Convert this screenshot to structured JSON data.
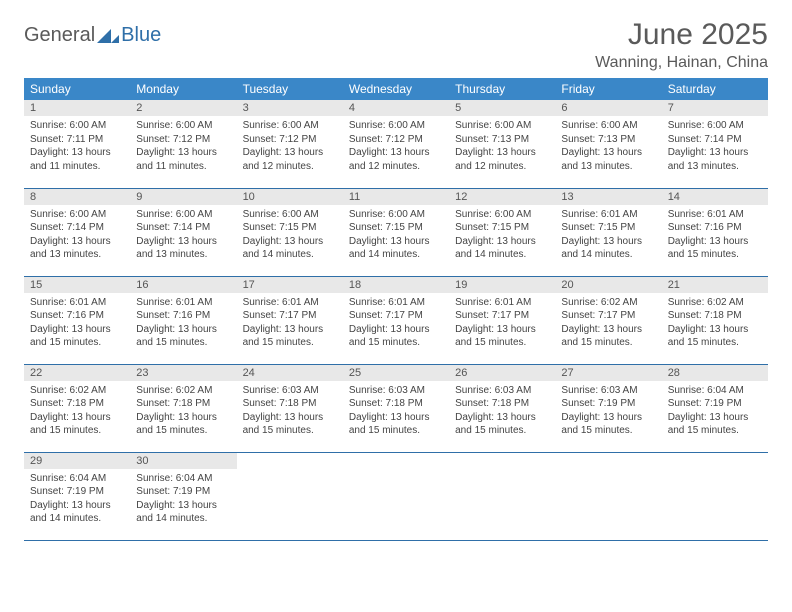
{
  "logo": {
    "text1": "General",
    "text2": "Blue"
  },
  "title": "June 2025",
  "location": "Wanning, Hainan, China",
  "colors": {
    "header_bg": "#3a87c8",
    "header_text": "#ffffff",
    "border": "#2f6fa8",
    "daynum_bg": "#e8e8e8",
    "text": "#5a5a5a",
    "logo_blue": "#2f6fa8"
  },
  "dayHeaders": [
    "Sunday",
    "Monday",
    "Tuesday",
    "Wednesday",
    "Thursday",
    "Friday",
    "Saturday"
  ],
  "weeks": [
    [
      {
        "n": "1",
        "sr": "6:00 AM",
        "ss": "7:11 PM",
        "dl": "13 hours and 11 minutes."
      },
      {
        "n": "2",
        "sr": "6:00 AM",
        "ss": "7:12 PM",
        "dl": "13 hours and 11 minutes."
      },
      {
        "n": "3",
        "sr": "6:00 AM",
        "ss": "7:12 PM",
        "dl": "13 hours and 12 minutes."
      },
      {
        "n": "4",
        "sr": "6:00 AM",
        "ss": "7:12 PM",
        "dl": "13 hours and 12 minutes."
      },
      {
        "n": "5",
        "sr": "6:00 AM",
        "ss": "7:13 PM",
        "dl": "13 hours and 12 minutes."
      },
      {
        "n": "6",
        "sr": "6:00 AM",
        "ss": "7:13 PM",
        "dl": "13 hours and 13 minutes."
      },
      {
        "n": "7",
        "sr": "6:00 AM",
        "ss": "7:14 PM",
        "dl": "13 hours and 13 minutes."
      }
    ],
    [
      {
        "n": "8",
        "sr": "6:00 AM",
        "ss": "7:14 PM",
        "dl": "13 hours and 13 minutes."
      },
      {
        "n": "9",
        "sr": "6:00 AM",
        "ss": "7:14 PM",
        "dl": "13 hours and 13 minutes."
      },
      {
        "n": "10",
        "sr": "6:00 AM",
        "ss": "7:15 PM",
        "dl": "13 hours and 14 minutes."
      },
      {
        "n": "11",
        "sr": "6:00 AM",
        "ss": "7:15 PM",
        "dl": "13 hours and 14 minutes."
      },
      {
        "n": "12",
        "sr": "6:00 AM",
        "ss": "7:15 PM",
        "dl": "13 hours and 14 minutes."
      },
      {
        "n": "13",
        "sr": "6:01 AM",
        "ss": "7:15 PM",
        "dl": "13 hours and 14 minutes."
      },
      {
        "n": "14",
        "sr": "6:01 AM",
        "ss": "7:16 PM",
        "dl": "13 hours and 15 minutes."
      }
    ],
    [
      {
        "n": "15",
        "sr": "6:01 AM",
        "ss": "7:16 PM",
        "dl": "13 hours and 15 minutes."
      },
      {
        "n": "16",
        "sr": "6:01 AM",
        "ss": "7:16 PM",
        "dl": "13 hours and 15 minutes."
      },
      {
        "n": "17",
        "sr": "6:01 AM",
        "ss": "7:17 PM",
        "dl": "13 hours and 15 minutes."
      },
      {
        "n": "18",
        "sr": "6:01 AM",
        "ss": "7:17 PM",
        "dl": "13 hours and 15 minutes."
      },
      {
        "n": "19",
        "sr": "6:01 AM",
        "ss": "7:17 PM",
        "dl": "13 hours and 15 minutes."
      },
      {
        "n": "20",
        "sr": "6:02 AM",
        "ss": "7:17 PM",
        "dl": "13 hours and 15 minutes."
      },
      {
        "n": "21",
        "sr": "6:02 AM",
        "ss": "7:18 PM",
        "dl": "13 hours and 15 minutes."
      }
    ],
    [
      {
        "n": "22",
        "sr": "6:02 AM",
        "ss": "7:18 PM",
        "dl": "13 hours and 15 minutes."
      },
      {
        "n": "23",
        "sr": "6:02 AM",
        "ss": "7:18 PM",
        "dl": "13 hours and 15 minutes."
      },
      {
        "n": "24",
        "sr": "6:03 AM",
        "ss": "7:18 PM",
        "dl": "13 hours and 15 minutes."
      },
      {
        "n": "25",
        "sr": "6:03 AM",
        "ss": "7:18 PM",
        "dl": "13 hours and 15 minutes."
      },
      {
        "n": "26",
        "sr": "6:03 AM",
        "ss": "7:18 PM",
        "dl": "13 hours and 15 minutes."
      },
      {
        "n": "27",
        "sr": "6:03 AM",
        "ss": "7:19 PM",
        "dl": "13 hours and 15 minutes."
      },
      {
        "n": "28",
        "sr": "6:04 AM",
        "ss": "7:19 PM",
        "dl": "13 hours and 15 minutes."
      }
    ],
    [
      {
        "n": "29",
        "sr": "6:04 AM",
        "ss": "7:19 PM",
        "dl": "13 hours and 14 minutes."
      },
      {
        "n": "30",
        "sr": "6:04 AM",
        "ss": "7:19 PM",
        "dl": "13 hours and 14 minutes."
      },
      null,
      null,
      null,
      null,
      null
    ]
  ],
  "labels": {
    "sunrise": "Sunrise:",
    "sunset": "Sunset:",
    "daylight": "Daylight:"
  }
}
